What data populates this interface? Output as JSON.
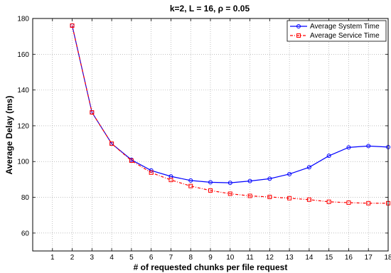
{
  "chart_data": {
    "type": "line",
    "title": "k=2, L = 16, ρ = 0.05",
    "xlabel": "# of requested chunks per file request",
    "ylabel": "Average Delay (ms)",
    "xlim": [
      0,
      18
    ],
    "ylim": [
      50,
      180
    ],
    "xticks": [
      1,
      2,
      3,
      4,
      5,
      6,
      7,
      8,
      9,
      10,
      11,
      12,
      13,
      14,
      15,
      16,
      17,
      18
    ],
    "yticks": [
      60,
      80,
      100,
      120,
      140,
      160,
      180
    ],
    "grid": true,
    "legend_position": "top-right",
    "x": [
      2,
      3,
      4,
      5,
      6,
      7,
      8,
      9,
      10,
      11,
      12,
      13,
      14,
      15,
      16,
      17,
      18
    ],
    "series": [
      {
        "name": "Average System Time",
        "color": "#0000ff",
        "marker": "circle",
        "line_style": "solid",
        "values": [
          176,
          127.5,
          110,
          101,
          95,
          91.7,
          89.4,
          88.4,
          88.1,
          89.1,
          90.4,
          93,
          96.8,
          103.2,
          107.9,
          108.7,
          108.1
        ]
      },
      {
        "name": "Average Service Time",
        "color": "#ff0000",
        "marker": "square",
        "line_style": "dash-dot",
        "values": [
          176,
          127.5,
          110,
          100.5,
          93.8,
          89.7,
          86.3,
          83.8,
          82,
          80.8,
          80.2,
          79.5,
          78.7,
          77.5,
          77,
          76.7,
          76.7
        ]
      }
    ]
  }
}
